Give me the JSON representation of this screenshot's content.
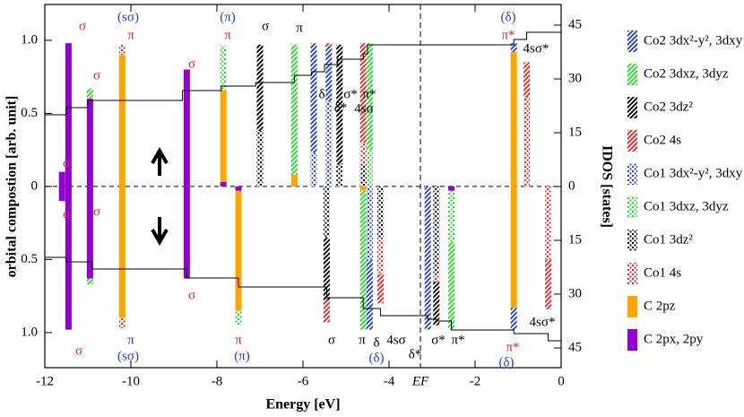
{
  "chart_data": {
    "type": "bar",
    "x_label": "Energy [eV]",
    "y_label": "orbital compostion [arb. unit]",
    "y2_label": "IDOS [states]",
    "xlim": [
      -12,
      0
    ],
    "xticks": [
      -12,
      -10,
      -8,
      -6,
      -4,
      -2,
      0
    ],
    "ylim": [
      -1.24,
      1.245
    ],
    "yticks": [
      {
        "value": 1,
        "label": "1.0"
      },
      {
        "value": 0.5,
        "label": "0.5"
      },
      0,
      {
        "value": -0.5,
        "label": "0.5"
      },
      {
        "value": -1,
        "label": "1.0"
      }
    ],
    "y2lim": [
      -50.5,
      50.75
    ],
    "y2ticks": [
      45,
      30,
      15,
      0,
      {
        "value": -15,
        "label": "15"
      },
      {
        "value": -30,
        "label": "30"
      },
      {
        "value": -45,
        "label": "45"
      }
    ],
    "fermi_energy": -3.27,
    "fermi_label": "EF",
    "x": [
      -11.6,
      -11.45,
      -10.95,
      -10.2,
      -8.7,
      -7.85,
      -7.0,
      -6.2,
      -5.75,
      -5.4,
      -5.15,
      -4.6,
      -4.45,
      -1.1,
      -0.8
    ],
    "x_down": [
      -11.6,
      -11.45,
      -10.95,
      -10.2,
      -8.7,
      -7.5,
      -5.45,
      -4.6,
      -4.45,
      -4.2,
      -3.1,
      -2.9,
      -2.55,
      -1.1,
      -0.3
    ],
    "series": [
      {
        "name": "Co2 3dx²-y², 3dxy",
        "color": "#1f3fe0",
        "pattern": "hatch",
        "values": [
          0,
          0,
          0,
          0,
          0,
          0,
          0,
          0,
          0.75,
          0.38,
          0,
          0,
          0,
          0.06,
          0
        ],
        "values_down": [
          0,
          0,
          0,
          0,
          0,
          0,
          0,
          0,
          0.48,
          0,
          0.98,
          0,
          0,
          0.15,
          0
        ]
      },
      {
        "name": "Co2 3dxz, 3dyz",
        "color": "#22dd22",
        "pattern": "hatch",
        "values": [
          0,
          0,
          0.07,
          0,
          0,
          0,
          0,
          0.89,
          0,
          0,
          0,
          0,
          0.73,
          0,
          0
        ],
        "values_down": [
          0,
          0,
          0.04,
          0,
          0,
          0,
          0,
          0.95,
          0,
          0,
          0,
          0,
          0.6,
          0,
          0
        ]
      },
      {
        "name": "Co2 3dz²",
        "color": "#000000",
        "pattern": "hatch",
        "values": [
          0,
          0,
          0,
          0,
          0,
          0,
          0.59,
          0,
          0,
          0,
          0.82,
          0,
          0,
          0,
          0
        ],
        "values_down": [
          0,
          0,
          0,
          0,
          0,
          0,
          0.43,
          0,
          0,
          0,
          0,
          0.3,
          0,
          0,
          0
        ]
      },
      {
        "name": "Co2 4s",
        "color": "#ee2222",
        "pattern": "hatch",
        "values": [
          0,
          0,
          0,
          0,
          0,
          0,
          0,
          0,
          0,
          0.02,
          0,
          0.68,
          0,
          0,
          0.24
        ],
        "values_down": [
          0,
          0,
          0,
          0,
          0,
          0,
          0.15,
          0,
          0,
          0.2,
          0,
          0,
          0,
          0,
          0.34
        ]
      },
      {
        "name": "Co1 3dx²-y², 3dxy",
        "color": "#1f3fe0",
        "pattern": "dots",
        "values": [
          0,
          0,
          0,
          0,
          0,
          0,
          0,
          0,
          0.23,
          0.58,
          0,
          0,
          0,
          0,
          0
        ],
        "values_down": [
          0,
          0,
          0,
          0,
          0,
          0,
          0,
          0,
          0.5,
          0,
          0,
          0,
          0,
          0,
          0
        ]
      },
      {
        "name": "Co1 3dxz, 3dyz",
        "color": "#22dd22",
        "pattern": "dots",
        "values": [
          0,
          0,
          0,
          0,
          0,
          0.3,
          0,
          0,
          0,
          0,
          0,
          0,
          0.25,
          0,
          0
        ],
        "values_down": [
          0,
          0,
          0,
          0,
          0,
          0.1,
          0,
          0,
          0,
          0,
          0,
          0,
          0.35,
          0,
          0
        ]
      },
      {
        "name": "Co1 3dz²",
        "color": "#000000",
        "pattern": "dots",
        "values": [
          0,
          0,
          0,
          0,
          0,
          0,
          0.38,
          0,
          0,
          0,
          0.15,
          0.15,
          0,
          0,
          0
        ],
        "values_down": [
          0,
          0,
          0,
          0,
          0,
          0,
          0.35,
          0,
          0,
          0.35,
          0,
          0.6,
          0,
          0,
          0
        ]
      },
      {
        "name": "Co1 4s",
        "color": "#ee2222",
        "pattern": "dots",
        "values": [
          0,
          0,
          0,
          0.07,
          0,
          0,
          0,
          0,
          0,
          0,
          0,
          0.15,
          0,
          0,
          0.61
        ],
        "values_down": [
          0,
          0,
          0,
          0.07,
          0,
          0,
          0,
          0,
          0,
          0.25,
          0,
          0.05,
          0,
          0,
          0.5
        ]
      },
      {
        "name": "C 2pz",
        "color": "#ffa500",
        "pattern": "solid",
        "values": [
          0,
          0,
          0,
          0.9,
          0,
          0.63,
          0,
          0.08,
          0,
          0,
          0,
          0,
          0,
          0.92,
          0
        ],
        "values_down": [
          0,
          0,
          0,
          0.9,
          0,
          0.82,
          0,
          0.03,
          0,
          0,
          0,
          0,
          0,
          0.83,
          0
        ]
      },
      {
        "name": "C 2px, 2py",
        "color": "#9400d3",
        "pattern": "solid",
        "values": [
          0.1,
          0.98,
          0.6,
          0,
          0.8,
          0.03,
          0,
          0,
          0,
          0,
          0,
          0,
          0,
          0,
          0
        ],
        "values_down": [
          0.1,
          0.98,
          0.63,
          0,
          0.63,
          0.03,
          0,
          0,
          0,
          0,
          0,
          0,
          0.03,
          0,
          0
        ]
      }
    ],
    "idos": [
      {
        "axis": "y2",
        "color": "#000000",
        "x": [
          -12,
          -11.5,
          -11,
          -8.8,
          -7.9,
          -7.1,
          -6.2,
          -5.8,
          -5.5,
          -5.2,
          -4.6,
          -4.5,
          -1.1,
          -0.8
        ],
        "values": [
          20,
          22,
          24,
          26.75,
          28,
          29,
          31,
          32,
          34,
          35.5,
          37,
          39.5,
          41,
          43
        ]
      },
      {
        "axis": "y2",
        "color": "#000000",
        "x": [
          -12,
          -11.5,
          -10.9,
          -8.7,
          -7.5,
          -5.45,
          -4.6,
          -4.2,
          -3.1,
          -2.9,
          -2.55,
          -1.1,
          -0.3
        ],
        "values": [
          -19.75,
          -21,
          -23,
          -25.5,
          -28,
          -31,
          -34,
          -36,
          -37,
          -37.5,
          -40,
          -41,
          -43
        ]
      }
    ],
    "annotations": [
      {
        "text": "σ",
        "color": "#ee2222"
      },
      {
        "text": "σ",
        "color": "#ee2222"
      },
      {
        "text": "σ",
        "color": "#ee2222"
      },
      {
        "text": "(sσ)",
        "color": "#1f3fe0"
      },
      {
        "text": "π",
        "color": "#ee2222"
      },
      {
        "text": "(π)",
        "color": "#1f3fe0"
      },
      {
        "text": "π",
        "color": "#ee2222"
      },
      {
        "text": "σ",
        "color": "#ee2222"
      },
      {
        "text": "σ",
        "color": "#000000"
      },
      {
        "text": "π",
        "color": "#000000"
      },
      {
        "text": "δ",
        "color": "#000000"
      },
      {
        "text": "δ*",
        "color": "#000000"
      },
      {
        "text": "σ*",
        "color": "#000000"
      },
      {
        "text": "π*",
        "color": "#000000"
      },
      {
        "text": "4sσ",
        "color": "#000000"
      },
      {
        "text": "(δ)",
        "color": "#1f3fe0"
      },
      {
        "text": "π*",
        "color": "#ee2222"
      },
      {
        "text": "4sσ*",
        "color": "#000000"
      },
      {
        "text": "σ",
        "color": "#ee2222"
      },
      {
        "text": "σ",
        "color": "#ee2222"
      },
      {
        "text": "σ",
        "color": "#ee2222"
      },
      {
        "text": "π",
        "color": "#1f3fe0"
      },
      {
        "text": "(sσ)",
        "color": "#1f3fe0"
      },
      {
        "text": "σ",
        "color": "#ee2222"
      },
      {
        "text": "π",
        "color": "#ee2222"
      },
      {
        "text": "(π)",
        "color": "#1f3fe0"
      },
      {
        "text": "σ",
        "color": "#000000"
      },
      {
        "text": "π",
        "color": "#000000"
      },
      {
        "text": "δ",
        "color": "#000000"
      },
      {
        "text": "4sσ",
        "color": "#000000"
      },
      {
        "text": "(δ)",
        "color": "#1f3fe0"
      },
      {
        "text": "δ*",
        "color": "#000000"
      },
      {
        "text": "σ*",
        "color": "#000000"
      },
      {
        "text": "π*",
        "color": "#000000"
      },
      {
        "text": "π*",
        "color": "#ee2222"
      },
      {
        "text": "(δ)",
        "color": "#1f3fe0"
      },
      {
        "text": "4sσ*",
        "color": "#000000"
      }
    ]
  }
}
